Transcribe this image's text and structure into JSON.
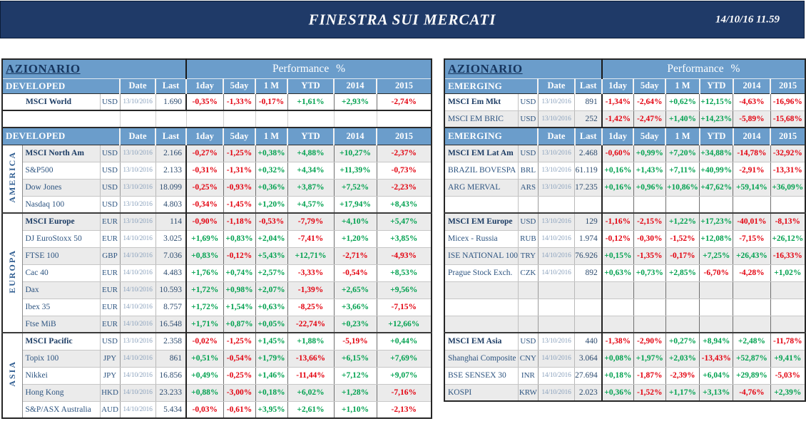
{
  "banner": {
    "title": "FINESTRA SUI MERCATI",
    "datetime": "14/10/16 11.59"
  },
  "colors": {
    "banner_navy": "#1f3a68",
    "header_blue": "#6b9dcb",
    "positive_green": "#00a14f",
    "negative_red": "#e3000e",
    "stripe_gray": "#ebebeb",
    "name_navy": "#2d5480"
  },
  "left_table": {
    "title": "AZIONARIO",
    "perf_header": "Performance %",
    "columns": [
      "Date",
      "Last",
      "1day",
      "5day",
      "1 M",
      "YTD",
      "2014",
      "2015"
    ],
    "block1": {
      "header": "DEVELOPED",
      "rows": [
        {
          "name": "MSCI World",
          "bold": true,
          "ccy": "USD",
          "date": "13/10/2016",
          "last": "1.690",
          "perf": [
            "-0,35%",
            "-1,33%",
            "-0,17%",
            "+1,61%",
            "+2,93%",
            "-2,74%"
          ]
        },
        {
          "type": "gap"
        }
      ]
    },
    "block2": {
      "header": "DEVELOPED",
      "groups": [
        {
          "label": "AMERICA",
          "span": 4
        },
        {
          "label": "EUROPA",
          "span": 7
        },
        {
          "label": "ASIA",
          "span": 5
        }
      ],
      "rows": [
        {
          "name": "MSCI North Am",
          "bold": true,
          "ccy": "USD",
          "date": "13/10/2016",
          "last": "2.166",
          "perf": [
            "-0,27%",
            "-1,25%",
            "+0,38%",
            "+4,88%",
            "+10,27%",
            "-2,37%"
          ]
        },
        {
          "name": "S&P500",
          "ccy": "USD",
          "date": "13/10/2016",
          "last": "2.133",
          "perf": [
            "-0,31%",
            "-1,31%",
            "+0,32%",
            "+4,34%",
            "+11,39%",
            "-0,73%"
          ]
        },
        {
          "name": "Dow Jones",
          "ccy": "USD",
          "date": "13/10/2016",
          "last": "18.099",
          "perf": [
            "-0,25%",
            "-0,93%",
            "+0,36%",
            "+3,87%",
            "+7,52%",
            "-2,23%"
          ]
        },
        {
          "name": "Nasdaq 100",
          "ccy": "USD",
          "date": "13/10/2016",
          "last": "4.803",
          "perf": [
            "-0,34%",
            "-1,45%",
            "+1,20%",
            "+4,57%",
            "+17,94%",
            "+8,43%"
          ]
        },
        {
          "name": "MSCI Europe",
          "bold": true,
          "top": true,
          "ccy": "EUR",
          "date": "13/10/2016",
          "last": "114",
          "perf": [
            "-0,90%",
            "-1,18%",
            "-0,53%",
            "-7,79%",
            "+4,10%",
            "+5,47%"
          ]
        },
        {
          "name": "DJ EuroStoxx 50",
          "ccy": "EUR",
          "date": "14/10/2016",
          "last": "3.025",
          "perf": [
            "+1,69%",
            "+0,83%",
            "+2,04%",
            "-7,41%",
            "+1,20%",
            "+3,85%"
          ]
        },
        {
          "name": "FTSE 100",
          "ccy": "GBP",
          "date": "14/10/2016",
          "last": "7.036",
          "perf": [
            "+0,83%",
            "-0,12%",
            "+5,43%",
            "+12,71%",
            "-2,71%",
            "-4,93%"
          ]
        },
        {
          "name": "Cac 40",
          "ccy": "EUR",
          "date": "14/10/2016",
          "last": "4.483",
          "perf": [
            "+1,76%",
            "+0,74%",
            "+2,57%",
            "-3,33%",
            "-0,54%",
            "+8,53%"
          ]
        },
        {
          "name": "Dax",
          "ccy": "EUR",
          "date": "14/10/2016",
          "last": "10.593",
          "perf": [
            "+1,72%",
            "+0,98%",
            "+2,07%",
            "-1,39%",
            "+2,65%",
            "+9,56%"
          ]
        },
        {
          "name": "Ibex 35",
          "ccy": "EUR",
          "date": "14/10/2016",
          "last": "8.757",
          "perf": [
            "+1,72%",
            "+1,54%",
            "+0,63%",
            "-8,25%",
            "+3,66%",
            "-7,15%"
          ]
        },
        {
          "name": "Ftse MiB",
          "ccy": "EUR",
          "date": "14/10/2016",
          "last": "16.548",
          "perf": [
            "+1,71%",
            "+0,87%",
            "+0,05%",
            "-22,74%",
            "+0,23%",
            "+12,66%"
          ]
        },
        {
          "name": "MSCI Pacific",
          "bold": true,
          "top": true,
          "ccy": "USD",
          "date": "13/10/2016",
          "last": "2.358",
          "perf": [
            "-0,02%",
            "-1,25%",
            "+1,45%",
            "+1,88%",
            "-5,19%",
            "+0,44%"
          ]
        },
        {
          "name": "Topix 100",
          "ccy": "JPY",
          "date": "14/10/2016",
          "last": "861",
          "perf": [
            "+0,51%",
            "-0,54%",
            "+1,79%",
            "-13,66%",
            "+6,15%",
            "+7,69%"
          ]
        },
        {
          "name": "Nikkei",
          "ccy": "JPY",
          "date": "14/10/2016",
          "last": "16.856",
          "perf": [
            "+0,49%",
            "-0,25%",
            "+1,46%",
            "-11,44%",
            "+7,12%",
            "+9,07%"
          ]
        },
        {
          "name": "Hong Kong",
          "ccy": "HKD",
          "date": "14/10/2016",
          "last": "23.233",
          "perf": [
            "+0,88%",
            "-3,00%",
            "+0,18%",
            "+6,02%",
            "+1,28%",
            "-7,16%"
          ]
        },
        {
          "name": "S&P/ASX Australia",
          "ccy": "AUD",
          "date": "14/10/2016",
          "last": "5.434",
          "perf": [
            "-0,03%",
            "-0,61%",
            "+3,95%",
            "+2,61%",
            "+1,10%",
            "-2,13%"
          ]
        }
      ]
    }
  },
  "right_table": {
    "title": "AZIONARIO",
    "perf_header": "Performance %",
    "columns": [
      "Date",
      "Last",
      "1day",
      "5day",
      "1 M",
      "YTD",
      "2014",
      "2015"
    ],
    "block1": {
      "header": "EMERGING",
      "rows": [
        {
          "name": "MSCI Em Mkt",
          "bold": true,
          "ccy": "USD",
          "date": "13/10/2016",
          "last": "891",
          "perf": [
            "-1,34%",
            "-2,64%",
            "+0,62%",
            "+12,15%",
            "-4,63%",
            "-16,96%"
          ]
        },
        {
          "name": "MSCI EM BRIC",
          "ccy": "USD",
          "date": "13/10/2016",
          "last": "252",
          "perf": [
            "-1,42%",
            "-2,47%",
            "+1,40%",
            "+14,23%",
            "-5,89%",
            "-15,68%"
          ]
        }
      ]
    },
    "block2": {
      "header": "EMERGING",
      "rows": [
        {
          "name": "MSCI EM Lat Am",
          "bold": true,
          "ccy": "USD",
          "date": "13/10/2016",
          "last": "2.468",
          "perf": [
            "-0,60%",
            "+0,99%",
            "+7,20%",
            "+34,88%",
            "-14,78%",
            "-32,92%"
          ]
        },
        {
          "name": "BRAZIL BOVESPA",
          "ccy": "BRL",
          "date": "13/10/2016",
          "last": "61.119",
          "perf": [
            "+0,16%",
            "+1,43%",
            "+7,11%",
            "+40,99%",
            "-2,91%",
            "-13,31%"
          ]
        },
        {
          "name": "ARG MERVAL",
          "ccy": "ARS",
          "date": "13/10/2016",
          "last": "17.235",
          "perf": [
            "+0,16%",
            "+0,96%",
            "+10,86%",
            "+47,62%",
            "+59,14%",
            "+36,09%"
          ]
        },
        {
          "type": "empty"
        },
        {
          "name": "MSCI EM Europe",
          "bold": true,
          "top": true,
          "ccy": "USD",
          "date": "13/10/2016",
          "last": "129",
          "perf": [
            "-1,16%",
            "-2,15%",
            "+1,22%",
            "+17,23%",
            "-40,01%",
            "-8,13%"
          ]
        },
        {
          "name": "Micex - Russia",
          "ccy": "RUB",
          "date": "14/10/2016",
          "last": "1.974",
          "perf": [
            "-0,12%",
            "-0,30%",
            "-1,52%",
            "+12,08%",
            "-7,15%",
            "+26,12%"
          ]
        },
        {
          "name": "ISE NATIONAL 100",
          "ccy": "TRY",
          "date": "14/10/2016",
          "last": "76.926",
          "perf": [
            "+0,15%",
            "-1,35%",
            "-0,17%",
            "+7,25%",
            "+26,43%",
            "-16,33%"
          ]
        },
        {
          "name": "Prague Stock Exch.",
          "ccy": "CZK",
          "date": "14/10/2016",
          "last": "892",
          "perf": [
            "+0,63%",
            "+0,73%",
            "+2,85%",
            "-6,70%",
            "-4,28%",
            "+1,02%"
          ]
        },
        {
          "type": "empty"
        },
        {
          "type": "empty"
        },
        {
          "type": "empty"
        },
        {
          "name": "MSCI EM Asia",
          "bold": true,
          "top": true,
          "ccy": "USD",
          "date": "13/10/2016",
          "last": "440",
          "perf": [
            "-1,38%",
            "-2,90%",
            "+0,27%",
            "+8,94%",
            "+2,48%",
            "-11,78%"
          ]
        },
        {
          "name": "Shanghai Composite",
          "ccy": "CNY",
          "date": "14/10/2016",
          "last": "3.064",
          "perf": [
            "+0,08%",
            "+1,97%",
            "+2,03%",
            "-13,43%",
            "+52,87%",
            "+9,41%"
          ]
        },
        {
          "name": "BSE SENSEX 30",
          "ccy": "INR",
          "date": "14/10/2016",
          "last": "27.694",
          "perf": [
            "+0,18%",
            "-1,87%",
            "-2,39%",
            "+6,04%",
            "+29,89%",
            "-5,03%"
          ]
        },
        {
          "name": "KOSPI",
          "ccy": "KRW",
          "date": "14/10/2016",
          "last": "2.023",
          "perf": [
            "+0,36%",
            "-1,52%",
            "+1,17%",
            "+3,13%",
            "-4,76%",
            "+2,39%"
          ]
        }
      ]
    }
  }
}
